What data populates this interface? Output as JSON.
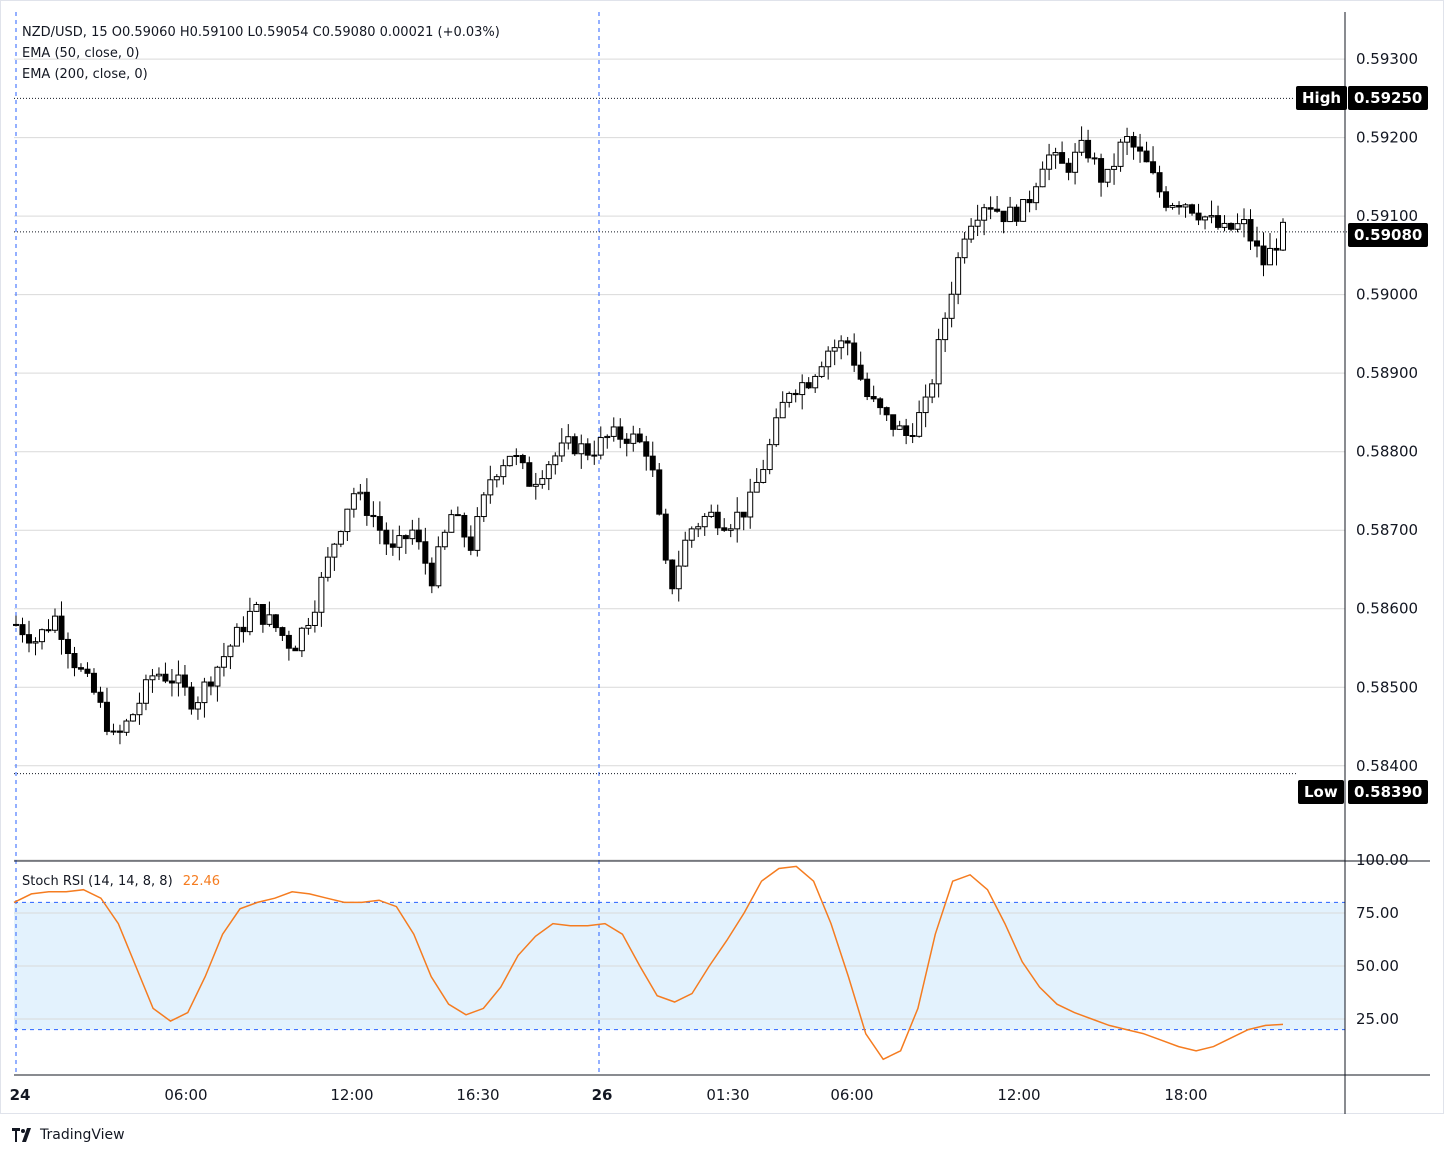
{
  "legend": {
    "line1": "NZD/USD, 15  O0.59060  H0.59100  L0.59054  C0.59080  0.00021 (+0.03%)",
    "line2": "EMA (50, close, 0)",
    "line3": "EMA (200, close, 0)",
    "stoch_label": "Stoch RSI (14, 14, 8, 8)",
    "stoch_value": "22.46"
  },
  "price_tags": {
    "high_label": "High",
    "high_value": "0.59250",
    "low_label": "Low",
    "low_value": "0.58390",
    "last_value": "0.59080"
  },
  "brand": "TradingView",
  "colors": {
    "up_fill": "#ffffff",
    "down_fill": "#000000",
    "candle_outline": "#000000",
    "stoch_line": "#f57c20",
    "stoch_band": "#e3f2fd",
    "grid": "#d9d9d9",
    "session_line": "#2962ff"
  },
  "chart_data": [
    {
      "type": "candlestick",
      "symbol": "NZD/USD",
      "timeframe": "15",
      "ylim": [
        0.5828,
        0.5936
      ],
      "y_ticks": [
        "0.59300",
        "0.59200",
        "0.59100",
        "0.59000",
        "0.58900",
        "0.58800",
        "0.58700",
        "0.58600",
        "0.58500",
        "0.58400"
      ],
      "x_ticks": [
        "24",
        "06:00",
        "12:00",
        "16:30",
        "26",
        "01:30",
        "06:00",
        "12:00",
        "18:00"
      ],
      "session_breaks": [
        "24",
        "26"
      ],
      "high": 0.5925,
      "low": 0.5839,
      "last": 0.5908,
      "close_path": [
        0.5858,
        0.5856,
        0.5859,
        0.5853,
        0.5849,
        0.5843,
        0.5847,
        0.5852,
        0.5851,
        0.5848,
        0.5852,
        0.5856,
        0.586,
        0.5858,
        0.5855,
        0.586,
        0.5868,
        0.5875,
        0.5872,
        0.5867,
        0.587,
        0.5864,
        0.5872,
        0.5868,
        0.5877,
        0.588,
        0.5876,
        0.5879,
        0.5881,
        0.588,
        0.5882,
        0.5882,
        0.588,
        0.5862,
        0.587,
        0.5872,
        0.5871,
        0.5873,
        0.588,
        0.5888,
        0.5889,
        0.5893,
        0.5894,
        0.5887,
        0.5884,
        0.5882,
        0.5886,
        0.5898,
        0.5909,
        0.5912,
        0.591,
        0.5911,
        0.5918,
        0.5916,
        0.5919,
        0.5914,
        0.592,
        0.5917,
        0.5912,
        0.5912,
        0.591,
        0.5908,
        0.5909,
        0.5904,
        0.5908
      ],
      "n_candles": 196
    },
    {
      "type": "line",
      "name": "Stoch RSI (14, 14, 8, 8)",
      "ylim": [
        0,
        100
      ],
      "y_ticks": [
        "100.00",
        "75.00",
        "50.00",
        "25.00"
      ],
      "band": [
        20,
        80
      ],
      "values": [
        80,
        84,
        85,
        85,
        86,
        82,
        70,
        50,
        30,
        24,
        28,
        45,
        65,
        77,
        80,
        82,
        85,
        84,
        82,
        80,
        80,
        81,
        78,
        65,
        45,
        32,
        27,
        30,
        40,
        55,
        64,
        70,
        69,
        69,
        70,
        65,
        50,
        36,
        33,
        37,
        50,
        62,
        75,
        90,
        96,
        97,
        90,
        70,
        45,
        18,
        6,
        10,
        30,
        65,
        90,
        93,
        86,
        70,
        52,
        40,
        32,
        28,
        25,
        22,
        20,
        18,
        15,
        12,
        10,
        12,
        16,
        20,
        22,
        22.46
      ]
    }
  ]
}
